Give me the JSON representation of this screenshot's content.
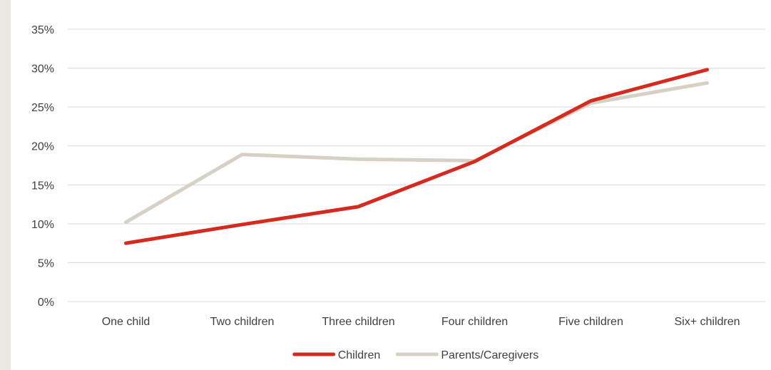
{
  "chart_data": {
    "type": "line",
    "categories": [
      "One child",
      "Two children",
      "Three children",
      "Four children",
      "Five children",
      "Six+ children"
    ],
    "series": [
      {
        "name": "Children",
        "color": "#d42a20",
        "values": [
          7.5,
          9.9,
          12.2,
          18.0,
          25.8,
          29.8
        ]
      },
      {
        "name": "Parents/Caregivers",
        "color": "#d6d1c4",
        "values": [
          10.2,
          18.9,
          18.3,
          18.1,
          25.5,
          28.1
        ]
      }
    ],
    "y_ticks": [
      "0%",
      "5%",
      "10%",
      "15%",
      "20%",
      "25%",
      "30%",
      "35%"
    ],
    "ylim": [
      0,
      35
    ],
    "y_step": 5,
    "grid": true,
    "legend_position": "bottom-center",
    "title": "",
    "xlabel": "",
    "ylabel": ""
  }
}
